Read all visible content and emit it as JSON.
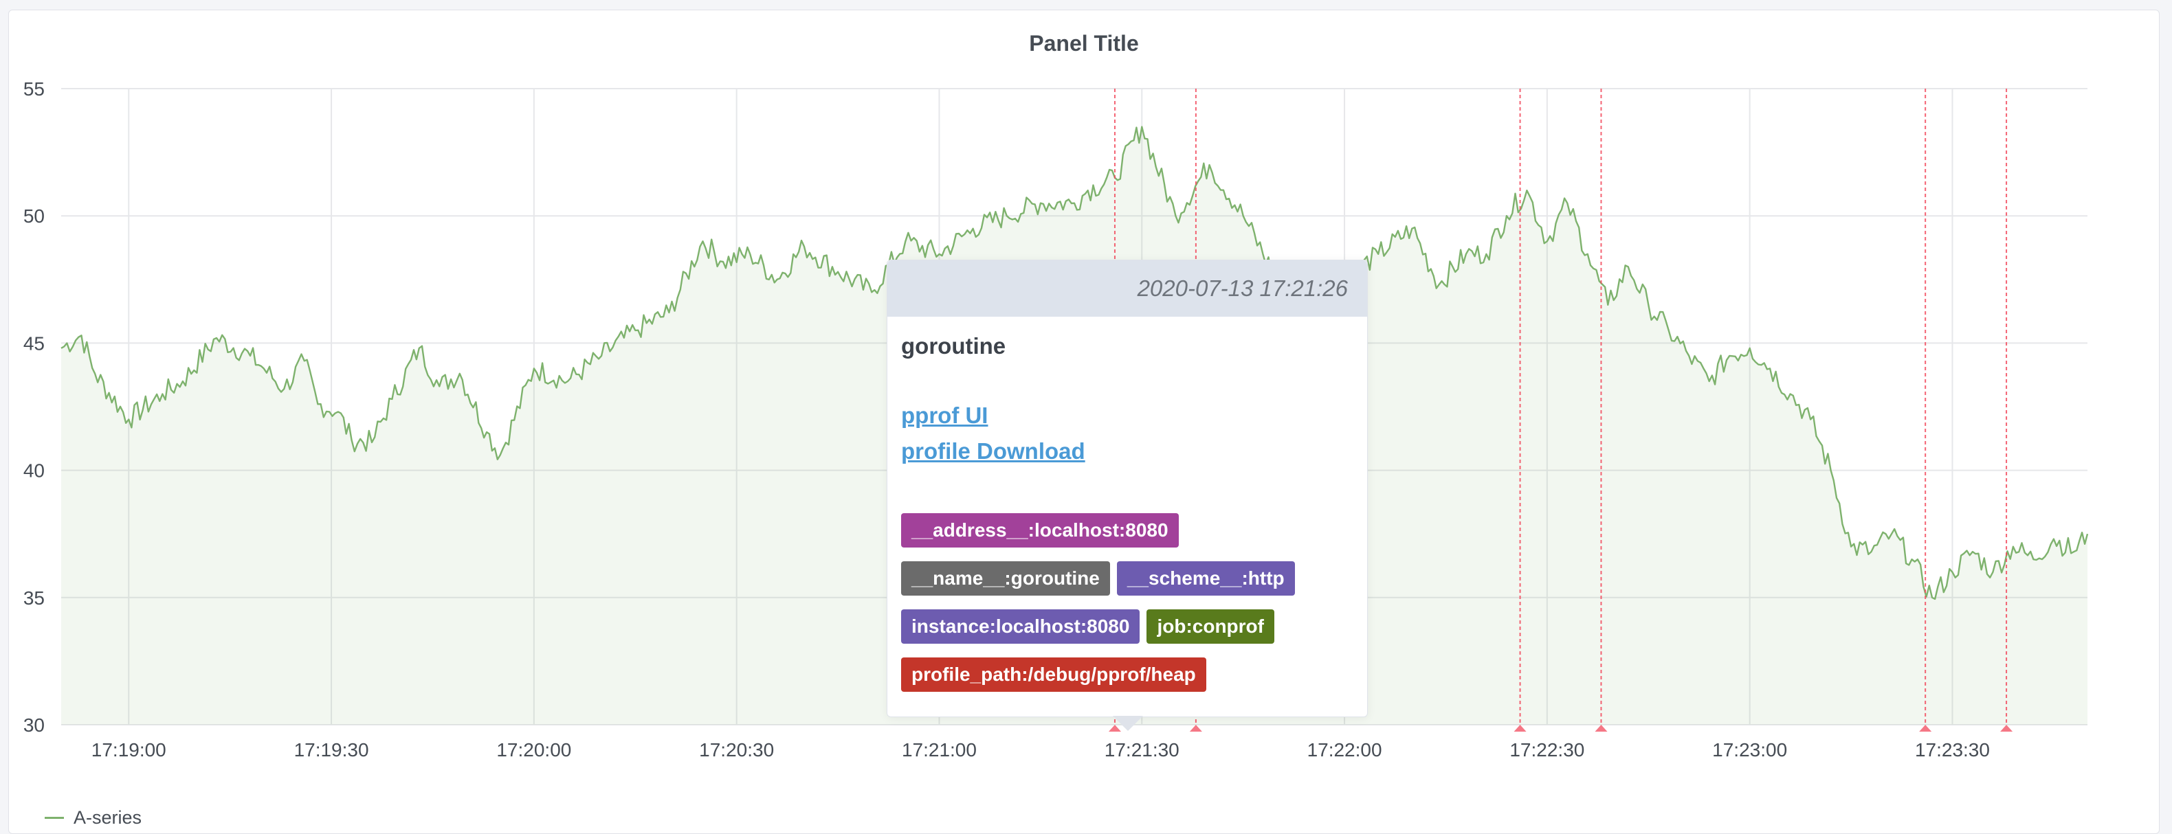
{
  "panel": {
    "title": "Panel Title"
  },
  "chart_data": {
    "type": "line",
    "title": "Panel Title",
    "xlabel": "",
    "ylabel": "",
    "ylim": [
      30,
      55
    ],
    "y_ticks": [
      30,
      35,
      40,
      45,
      50,
      55
    ],
    "x_range": [
      "17:18:50",
      "17:23:50"
    ],
    "x_ticks": [
      "17:19:00",
      "17:19:30",
      "17:20:00",
      "17:20:30",
      "17:21:00",
      "17:21:30",
      "17:22:00",
      "17:22:30",
      "17:23:00",
      "17:23:30"
    ],
    "grid": true,
    "legend_position": "bottom-left",
    "series": [
      {
        "name": "A-series",
        "color": "#7eb26d",
        "fill": true,
        "x": [
          "17:18:50",
          "17:18:53",
          "17:18:55",
          "17:19:00",
          "17:19:05",
          "17:19:08",
          "17:19:13",
          "17:19:18",
          "17:19:20",
          "17:19:23",
          "17:19:26",
          "17:19:28",
          "17:19:31",
          "17:19:33",
          "17:19:36",
          "17:19:39",
          "17:19:43",
          "17:19:46",
          "17:19:49",
          "17:19:53",
          "17:19:55",
          "17:20:00",
          "17:20:05",
          "17:20:10",
          "17:20:15",
          "17:20:20",
          "17:20:25",
          "17:20:28",
          "17:20:32",
          "17:20:36",
          "17:20:40",
          "17:20:45",
          "17:20:50",
          "17:20:55",
          "17:21:00",
          "17:21:05",
          "17:21:10",
          "17:21:15",
          "17:21:20",
          "17:21:22",
          "17:21:26",
          "17:21:30",
          "17:21:35",
          "17:21:40",
          "17:21:45",
          "17:21:50",
          "17:21:55",
          "17:22:00",
          "17:22:05",
          "17:22:10",
          "17:22:14",
          "17:22:18",
          "17:22:21",
          "17:22:24",
          "17:22:27",
          "17:22:30",
          "17:22:33",
          "17:22:36",
          "17:22:39",
          "17:22:42",
          "17:22:45",
          "17:22:48",
          "17:22:51",
          "17:22:54",
          "17:22:57",
          "17:23:00",
          "17:23:03",
          "17:23:06",
          "17:23:09",
          "17:23:12",
          "17:23:15",
          "17:23:18",
          "17:23:21",
          "17:23:24",
          "17:23:27",
          "17:23:30",
          "17:23:33",
          "17:23:36",
          "17:23:39",
          "17:23:42",
          "17:23:45",
          "17:23:48",
          "17:23:50"
        ],
        "values": [
          44.8,
          45.3,
          43.8,
          42.0,
          43.0,
          43.5,
          45.2,
          44.5,
          44.0,
          43.2,
          44.3,
          42.6,
          42.3,
          41.2,
          41.1,
          42.8,
          44.8,
          43.3,
          43.8,
          41.5,
          40.6,
          44.0,
          43.5,
          44.5,
          45.5,
          46.2,
          49.0,
          48.2,
          48.5,
          47.5,
          48.8,
          47.8,
          47.0,
          49.0,
          48.5,
          49.5,
          50.0,
          50.5,
          50.5,
          51.0,
          51.5,
          53.5,
          50.0,
          52.0,
          50.0,
          47.5,
          48.0,
          47.5,
          48.5,
          49.5,
          47.3,
          48.5,
          48.5,
          50.0,
          51.0,
          49.0,
          50.5,
          48.5,
          46.5,
          48.0,
          46.5,
          45.5,
          44.5,
          43.5,
          44.5,
          44.8,
          44.0,
          43.0,
          42.0,
          40.0,
          37.0,
          36.8,
          37.5,
          36.5,
          35.0,
          36.0,
          36.8,
          36.0,
          37.0,
          36.5,
          37.3,
          36.8,
          37.5
        ]
      }
    ],
    "annotations": [
      "17:21:26",
      "17:21:38",
      "17:22:26",
      "17:22:38",
      "17:23:26",
      "17:23:38"
    ],
    "annotation_color": "#f2495c"
  },
  "tooltip": {
    "time": "2020-07-13 17:21:26",
    "title": "goroutine",
    "links": [
      "pprof UI",
      "profile Download"
    ],
    "tags": [
      {
        "label": "__address__:localhost:8080",
        "color": "#a2419a"
      },
      {
        "label": "__name__:goroutine",
        "color": "#6b6b6b"
      },
      {
        "label": "__scheme__:http",
        "color": "#6d5cb0"
      },
      {
        "label": "instance:localhost:8080",
        "color": "#6d5cb0"
      },
      {
        "label": "job:conprof",
        "color": "#597b1c"
      },
      {
        "label": "profile_path:/debug/pprof/heap",
        "color": "#c4362a"
      }
    ]
  }
}
